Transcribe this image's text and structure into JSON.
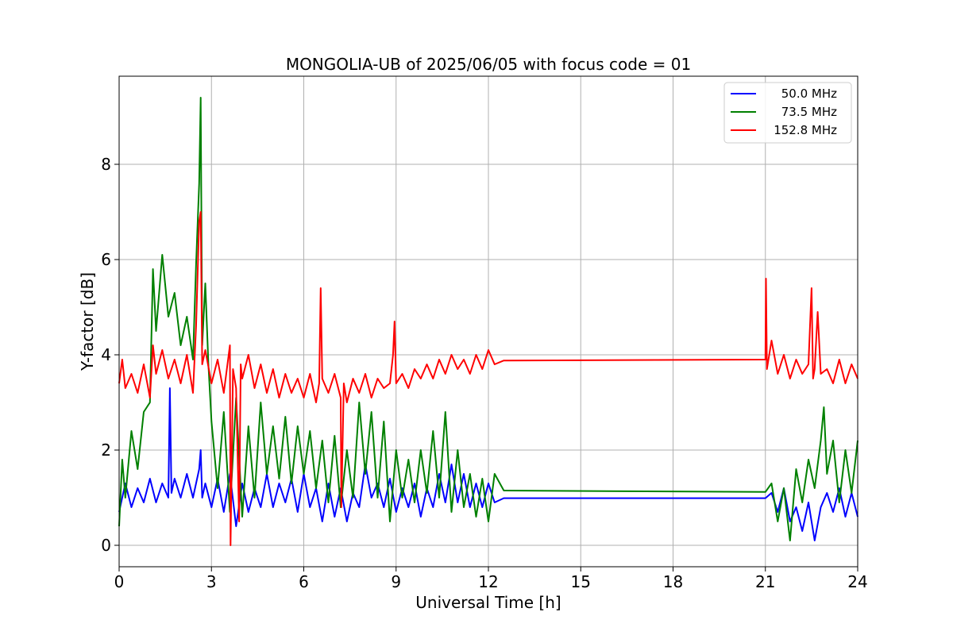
{
  "chart_data": {
    "type": "line",
    "title": "MONGOLIA-UB of 2025/06/05 with focus code = 01",
    "xlabel": "Universal Time [h]",
    "ylabel": "Y-factor [dB]",
    "xlim": [
      0,
      24
    ],
    "ylim": [
      -0.45,
      9.85
    ],
    "xticks": [
      0,
      3,
      6,
      9,
      12,
      15,
      18,
      21,
      24
    ],
    "yticks": [
      0,
      2,
      4,
      6,
      8
    ],
    "grid": true,
    "legend_position": "top-right",
    "series": [
      {
        "name": "50.0 MHz",
        "color": "#0000ff",
        "x": [
          0,
          0.2,
          0.4,
          0.6,
          0.8,
          1.0,
          1.2,
          1.4,
          1.6,
          1.65,
          1.7,
          1.8,
          2.0,
          2.2,
          2.4,
          2.6,
          2.65,
          2.7,
          2.8,
          3.0,
          3.2,
          3.4,
          3.6,
          3.8,
          4.0,
          4.2,
          4.4,
          4.6,
          4.8,
          5.0,
          5.2,
          5.4,
          5.6,
          5.8,
          6.0,
          6.2,
          6.4,
          6.6,
          6.8,
          7.0,
          7.2,
          7.4,
          7.6,
          7.8,
          8.0,
          8.2,
          8.4,
          8.6,
          8.8,
          9.0,
          9.2,
          9.4,
          9.6,
          9.8,
          10.0,
          10.2,
          10.4,
          10.6,
          10.8,
          11.0,
          11.2,
          11.4,
          11.6,
          11.8,
          12.0,
          12.2,
          12.5,
          21.0,
          21.2,
          21.4,
          21.6,
          21.8,
          22.0,
          22.2,
          22.4,
          22.6,
          22.8,
          23.0,
          23.2,
          23.4,
          23.6,
          23.8,
          24.0
        ],
        "y": [
          0.7,
          1.3,
          0.8,
          1.2,
          0.9,
          1.4,
          0.9,
          1.3,
          1.0,
          3.3,
          1.1,
          1.4,
          1.0,
          1.5,
          1.0,
          1.6,
          2.0,
          1.0,
          1.3,
          0.8,
          1.4,
          0.7,
          1.5,
          0.4,
          1.3,
          0.7,
          1.2,
          0.8,
          1.5,
          0.8,
          1.3,
          0.9,
          1.4,
          0.7,
          1.5,
          0.8,
          1.2,
          0.5,
          1.3,
          0.6,
          1.2,
          0.5,
          1.1,
          0.8,
          1.7,
          1.0,
          1.3,
          0.8,
          1.4,
          0.7,
          1.2,
          0.8,
          1.3,
          0.6,
          1.2,
          0.8,
          1.5,
          0.9,
          1.7,
          0.9,
          1.5,
          0.8,
          1.3,
          0.8,
          1.3,
          0.9,
          0.99,
          0.99,
          1.1,
          0.7,
          1.2,
          0.5,
          0.8,
          0.3,
          0.9,
          0.1,
          0.8,
          1.1,
          0.7,
          1.2,
          0.6,
          1.1,
          0.6
        ]
      },
      {
        "name": "73.5 MHz",
        "color": "#008000",
        "x": [
          0,
          0.1,
          0.2,
          0.4,
          0.6,
          0.8,
          1.0,
          1.1,
          1.2,
          1.4,
          1.6,
          1.8,
          2.0,
          2.2,
          2.4,
          2.5,
          2.6,
          2.65,
          2.7,
          2.8,
          2.9,
          3.0,
          3.2,
          3.4,
          3.6,
          3.8,
          4.0,
          4.2,
          4.4,
          4.6,
          4.8,
          5.0,
          5.2,
          5.4,
          5.6,
          5.8,
          6.0,
          6.2,
          6.4,
          6.6,
          6.8,
          7.0,
          7.2,
          7.4,
          7.6,
          7.8,
          8.0,
          8.2,
          8.4,
          8.6,
          8.8,
          9.0,
          9.2,
          9.4,
          9.6,
          9.8,
          10.0,
          10.2,
          10.4,
          10.6,
          10.8,
          11.0,
          11.2,
          11.4,
          11.6,
          11.8,
          12.0,
          12.2,
          12.5,
          21.0,
          21.2,
          21.4,
          21.6,
          21.8,
          22.0,
          22.2,
          22.4,
          22.6,
          22.8,
          22.9,
          23.0,
          23.2,
          23.4,
          23.6,
          23.8,
          24.0
        ],
        "y": [
          0.4,
          1.8,
          1.0,
          2.4,
          1.6,
          2.8,
          3.0,
          5.8,
          4.5,
          6.1,
          4.8,
          5.3,
          4.2,
          4.8,
          3.9,
          5.9,
          7.6,
          9.4,
          4.2,
          5.5,
          3.8,
          2.6,
          1.2,
          2.8,
          0.7,
          3.1,
          0.6,
          2.5,
          1.0,
          3.0,
          1.5,
          2.5,
          1.4,
          2.7,
          1.3,
          2.5,
          1.5,
          2.4,
          1.2,
          2.2,
          0.9,
          2.3,
          0.8,
          2.0,
          1.0,
          3.0,
          1.5,
          2.8,
          1.0,
          2.6,
          0.5,
          2.0,
          1.0,
          1.8,
          0.9,
          2.0,
          1.1,
          2.4,
          1.0,
          2.8,
          0.7,
          2.0,
          0.8,
          1.5,
          0.6,
          1.4,
          0.5,
          1.5,
          1.15,
          1.12,
          1.3,
          0.5,
          1.2,
          0.1,
          1.6,
          0.9,
          1.8,
          1.2,
          2.2,
          2.9,
          1.5,
          2.2,
          0.9,
          2.0,
          1.1,
          2.2
        ]
      },
      {
        "name": "152.8 MHz",
        "color": "#ff0000",
        "x": [
          0,
          0.1,
          0.2,
          0.4,
          0.6,
          0.8,
          1.0,
          1.1,
          1.2,
          1.4,
          1.6,
          1.8,
          2.0,
          2.2,
          2.4,
          2.5,
          2.6,
          2.65,
          2.7,
          2.8,
          3.0,
          3.2,
          3.4,
          3.6,
          3.62,
          3.7,
          3.8,
          3.9,
          3.95,
          4.0,
          4.2,
          4.4,
          4.6,
          4.8,
          5.0,
          5.2,
          5.4,
          5.6,
          5.8,
          6.0,
          6.2,
          6.4,
          6.5,
          6.55,
          6.6,
          6.8,
          7.0,
          7.2,
          7.22,
          7.3,
          7.4,
          7.6,
          7.8,
          8.0,
          8.2,
          8.4,
          8.6,
          8.8,
          8.9,
          8.95,
          9.0,
          9.2,
          9.4,
          9.6,
          9.8,
          10.0,
          10.2,
          10.4,
          10.6,
          10.8,
          11.0,
          11.2,
          11.4,
          11.6,
          11.8,
          12.0,
          12.2,
          12.5,
          21.0,
          21.02,
          21.05,
          21.2,
          21.4,
          21.6,
          21.8,
          22.0,
          22.2,
          22.4,
          22.5,
          22.55,
          22.6,
          22.7,
          22.8,
          23.0,
          23.2,
          23.4,
          23.6,
          23.8,
          24.0
        ],
        "y": [
          3.4,
          3.9,
          3.3,
          3.6,
          3.2,
          3.8,
          3.1,
          4.2,
          3.6,
          4.1,
          3.5,
          3.9,
          3.4,
          4.0,
          3.2,
          4.6,
          6.8,
          7.0,
          3.8,
          4.1,
          3.4,
          3.9,
          3.2,
          4.2,
          0.0,
          3.7,
          3.3,
          0.5,
          3.8,
          3.5,
          4.0,
          3.3,
          3.8,
          3.2,
          3.7,
          3.1,
          3.6,
          3.2,
          3.5,
          3.1,
          3.6,
          3.0,
          3.4,
          5.4,
          3.5,
          3.2,
          3.6,
          3.1,
          0.8,
          3.4,
          3.0,
          3.5,
          3.2,
          3.6,
          3.1,
          3.5,
          3.3,
          3.4,
          4.0,
          4.7,
          3.4,
          3.6,
          3.3,
          3.7,
          3.5,
          3.8,
          3.5,
          3.9,
          3.6,
          4.0,
          3.7,
          3.9,
          3.6,
          4.0,
          3.7,
          4.1,
          3.8,
          3.88,
          3.9,
          5.6,
          3.7,
          4.3,
          3.6,
          4.0,
          3.5,
          3.9,
          3.6,
          3.8,
          5.4,
          3.5,
          3.7,
          4.9,
          3.6,
          3.7,
          3.4,
          3.9,
          3.4,
          3.8,
          3.5
        ]
      }
    ]
  }
}
